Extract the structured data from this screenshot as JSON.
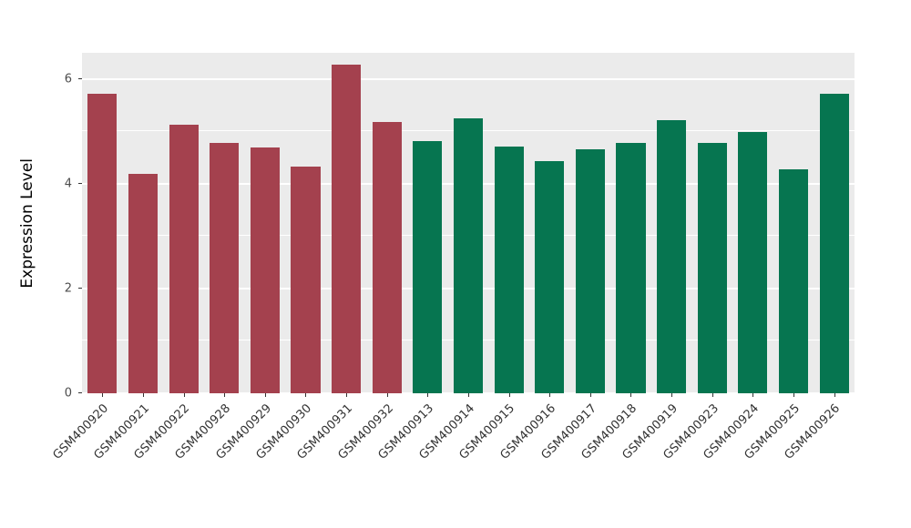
{
  "chart_data": {
    "type": "bar",
    "title": "",
    "xlabel": "",
    "ylabel": "Expression Level",
    "categories": [
      "GSM400920",
      "GSM400921",
      "GSM400922",
      "GSM400928",
      "GSM400929",
      "GSM400930",
      "GSM400931",
      "GSM400932",
      "GSM400913",
      "GSM400914",
      "GSM400915",
      "GSM400916",
      "GSM400917",
      "GSM400918",
      "GSM400919",
      "GSM400923",
      "GSM400924",
      "GSM400925",
      "GSM400926"
    ],
    "values": [
      5.72,
      4.19,
      5.13,
      4.78,
      4.69,
      4.33,
      6.27,
      5.18,
      4.82,
      5.25,
      4.71,
      4.43,
      4.66,
      4.78,
      5.22,
      4.78,
      4.99,
      4.28,
      5.72
    ],
    "bar_groups": [
      0,
      0,
      0,
      0,
      0,
      0,
      0,
      0,
      1,
      1,
      1,
      1,
      1,
      1,
      1,
      1,
      1,
      1,
      1
    ],
    "group_colors": [
      "#A4414E",
      "#067550"
    ],
    "ylim": [
      0,
      6.5
    ],
    "yticks": [
      0,
      2,
      4,
      6
    ],
    "ytick_labels": [
      "0",
      "2",
      "4",
      "6"
    ],
    "yticks_minor": [
      1,
      3,
      5
    ],
    "grid": "on",
    "legend_position": "none",
    "panel_bg": "#EBEBEB",
    "grid_color": "#FFFFFF"
  }
}
